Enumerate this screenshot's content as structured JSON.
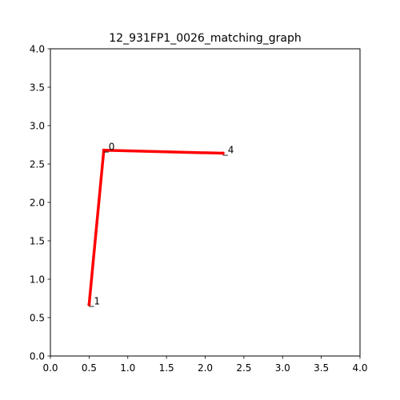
{
  "chart_data": {
    "type": "line",
    "title": "12_931FP1_0026_matching_graph",
    "xlabel": "",
    "ylabel": "",
    "xlim": [
      0,
      4
    ],
    "ylim": [
      0,
      4
    ],
    "grid": false,
    "x_ticks": [
      "0.0",
      "0.5",
      "1.0",
      "1.5",
      "2.0",
      "2.5",
      "3.0",
      "3.5",
      "4.0"
    ],
    "y_ticks": [
      "0.0",
      "0.5",
      "1.0",
      "1.5",
      "2.0",
      "2.5",
      "3.0",
      "3.5",
      "4.0"
    ],
    "line_color": "#ff0000",
    "nodes": [
      {
        "label": "_0",
        "x": 0.69,
        "y": 2.68
      },
      {
        "label": "_1",
        "x": 0.5,
        "y": 0.67
      },
      {
        "label": "_4",
        "x": 2.23,
        "y": 2.64
      }
    ],
    "edges": [
      {
        "from": "_0",
        "to": "_1"
      },
      {
        "from": "_0",
        "to": "_4"
      }
    ]
  }
}
